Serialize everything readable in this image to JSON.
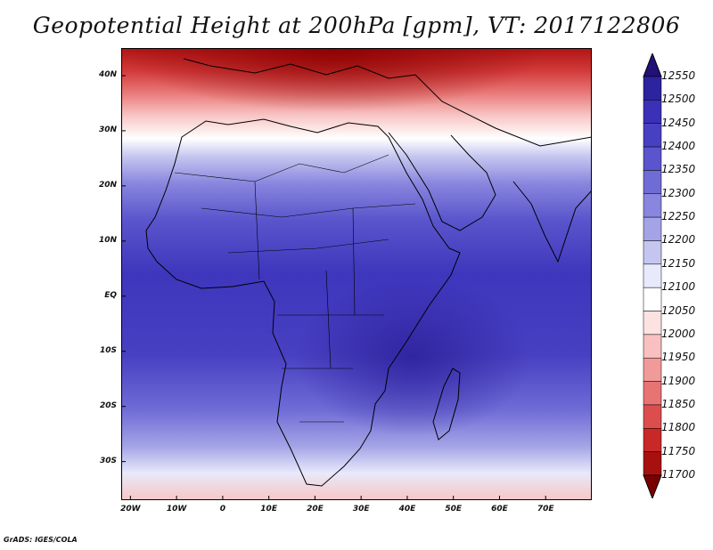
{
  "title": "Geopotential Height at 200hPa [gpm], VT: 2017122806",
  "credit": "GrADS: IGES/COLA",
  "map": {
    "lat_ticks": [
      {
        "label": "40N",
        "lat": 40
      },
      {
        "label": "30N",
        "lat": 30
      },
      {
        "label": "20N",
        "lat": 20
      },
      {
        "label": "10N",
        "lat": 10
      },
      {
        "label": "EQ",
        "lat": 0
      },
      {
        "label": "10S",
        "lat": -10
      },
      {
        "label": "20S",
        "lat": -20
      },
      {
        "label": "30S",
        "lat": -30
      }
    ],
    "lon_ticks": [
      {
        "label": "20W",
        "lon": -20
      },
      {
        "label": "10W",
        "lon": -10
      },
      {
        "label": "0",
        "lon": 0
      },
      {
        "label": "10E",
        "lon": 10
      },
      {
        "label": "20E",
        "lon": 20
      },
      {
        "label": "30E",
        "lon": 30
      },
      {
        "label": "40E",
        "lon": 40
      },
      {
        "label": "50E",
        "lon": 50
      },
      {
        "label": "60E",
        "lon": 60
      },
      {
        "label": "70E",
        "lon": 70
      }
    ],
    "lon_range": [
      -22,
      80
    ],
    "lat_range": [
      -37,
      45
    ]
  },
  "colorbar": {
    "levels": [
      "12550",
      "12500",
      "12450",
      "12400",
      "12350",
      "12300",
      "12250",
      "12200",
      "12150",
      "12100",
      "12050",
      "12000",
      "11950",
      "11900",
      "11850",
      "11800",
      "11750",
      "11700"
    ],
    "colors": [
      "#221177",
      "#2c23a0",
      "#3a31b8",
      "#4840c2",
      "#5a55cc",
      "#6f6cd6",
      "#8886de",
      "#a3a3e6",
      "#c5c6f0",
      "#e8e9fb",
      "#ffffff",
      "#fde2e2",
      "#f8c0c0",
      "#f19a9a",
      "#e87373",
      "#dc4d4d",
      "#c92828",
      "#a81010",
      "#7a0000"
    ]
  }
}
